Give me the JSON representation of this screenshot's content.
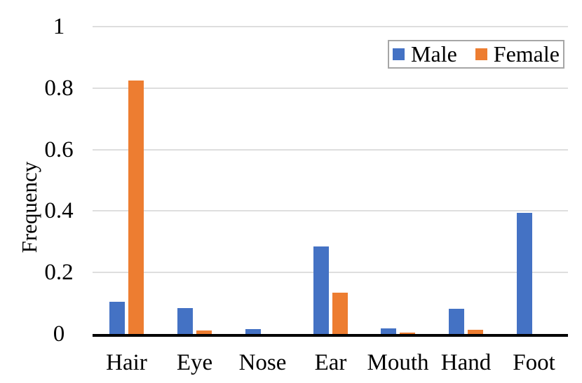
{
  "chart_data": {
    "type": "bar",
    "title": "",
    "xlabel": "",
    "ylabel": "Frequency",
    "categories": [
      "Hair",
      "Eye",
      "Nose",
      "Ear",
      "Mouth",
      "Hand",
      "Foot"
    ],
    "series": [
      {
        "name": "Male",
        "color": "#4472C4",
        "values": [
          0.105,
          0.085,
          0.015,
          0.285,
          0.018,
          0.082,
          0.395
        ]
      },
      {
        "name": "Female",
        "color": "#ED7D31",
        "values": [
          0.825,
          0.012,
          0.0,
          0.135,
          0.004,
          0.014,
          0.0
        ]
      }
    ],
    "ylim": [
      0,
      1
    ],
    "yticks": [
      0,
      0.2,
      0.4,
      0.6,
      0.8,
      1
    ],
    "ytick_labels": [
      "0",
      "0.2",
      "0.4",
      "0.6",
      "0.8",
      "1"
    ],
    "grid": true,
    "legend_position": "top-right-inside"
  },
  "legend": {
    "items": [
      {
        "label": "Male",
        "color": "#4472C4"
      },
      {
        "label": "Female",
        "color": "#ED7D31"
      }
    ]
  },
  "colors": {
    "male": "#4472C4",
    "female": "#ED7D31",
    "gridline": "#DEDEDE",
    "axis_line": "#000000",
    "legend_border": "#A6A6A6",
    "text": "#000000",
    "background": "#FFFFFF"
  }
}
